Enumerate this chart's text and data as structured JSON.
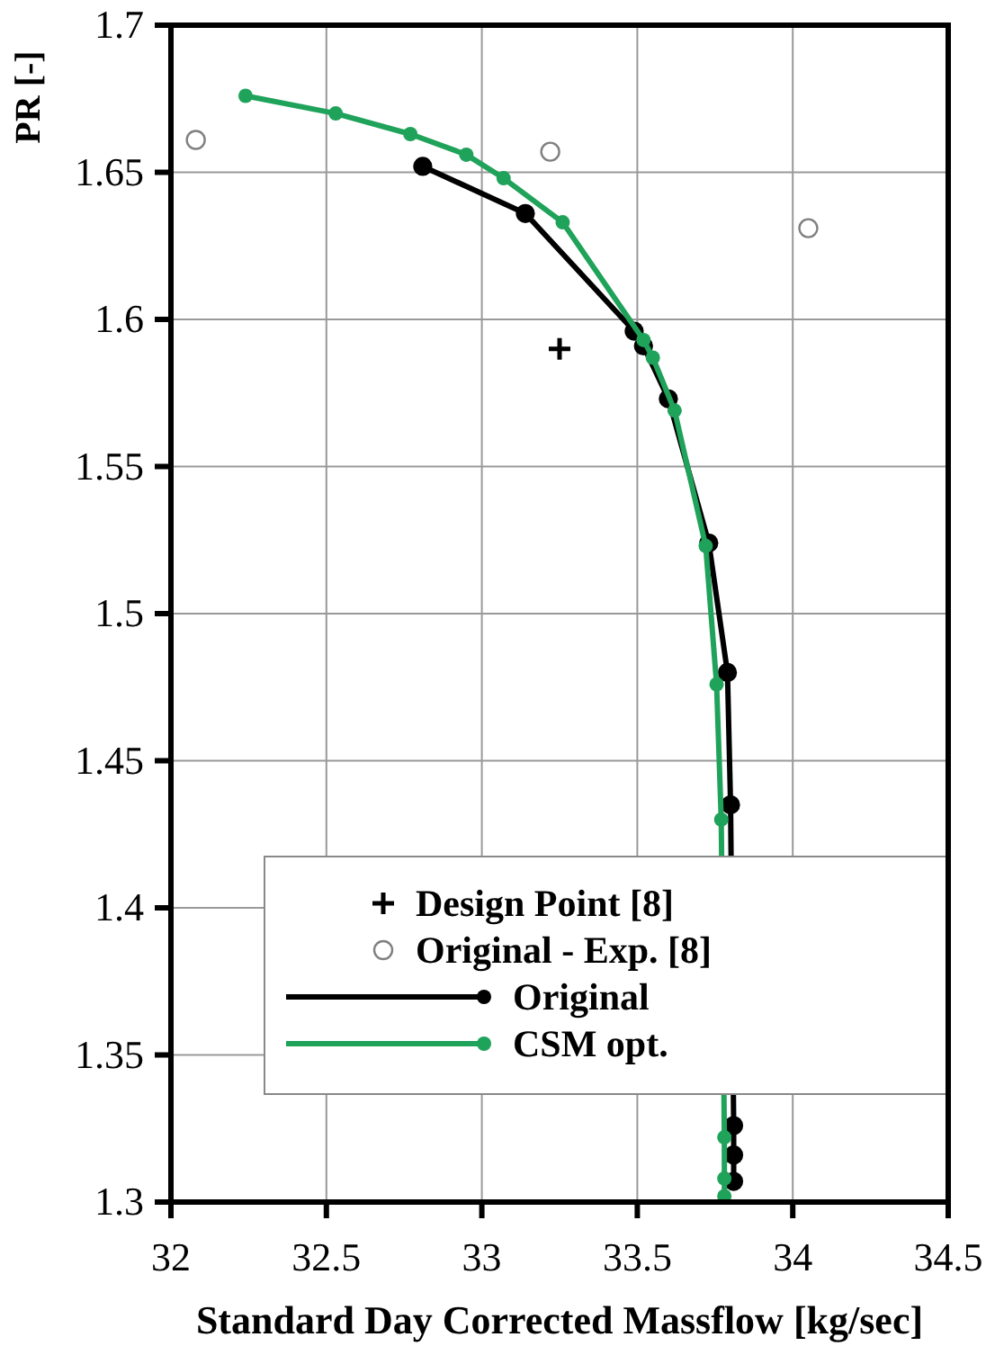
{
  "chart_data": {
    "type": "line",
    "xlabel": "Standard Day Corrected Massflow [kg/sec]",
    "ylabel": "PR [-]",
    "xlim": [
      32,
      34.5
    ],
    "xticks": [
      32,
      32.5,
      33,
      33.5,
      34,
      34.5
    ],
    "ylim": [
      1.3,
      1.7
    ],
    "yticks": [
      1.3,
      1.35,
      1.4,
      1.45,
      1.5,
      1.55,
      1.6,
      1.65,
      1.7
    ],
    "grid": true,
    "legend": "bottom right",
    "series": [
      {
        "name": "Design Point [8]",
        "type": "scatter",
        "marker": "cross",
        "color": "#000000",
        "x": [
          33.25
        ],
        "values": [
          1.59
        ]
      },
      {
        "name": "Original - Exp. [8]",
        "type": "scatter",
        "marker": "circle",
        "color": "#808080",
        "x": [
          32.08,
          33.22,
          34.05
        ],
        "values": [
          1.661,
          1.657,
          1.631
        ]
      },
      {
        "name": "Original",
        "marker": "circle",
        "color": "#000000",
        "x": [
          32.81,
          33.14,
          33.49,
          33.52,
          33.6,
          33.73,
          33.79,
          33.8,
          33.81,
          33.81,
          33.81
        ],
        "values": [
          1.652,
          1.636,
          1.596,
          1.591,
          1.573,
          1.524,
          1.48,
          1.435,
          1.326,
          1.316,
          1.307
        ]
      },
      {
        "name": "CSM opt.",
        "marker": "circle",
        "color": "#1fa25a",
        "x": [
          32.24,
          32.53,
          32.77,
          32.95,
          33.07,
          33.26,
          33.52,
          33.55,
          33.62,
          33.72,
          33.755,
          33.77,
          33.78,
          33.78,
          33.78
        ],
        "values": [
          1.676,
          1.67,
          1.663,
          1.656,
          1.648,
          1.633,
          1.593,
          1.587,
          1.569,
          1.523,
          1.476,
          1.43,
          1.322,
          1.308,
          1.302
        ]
      }
    ]
  }
}
